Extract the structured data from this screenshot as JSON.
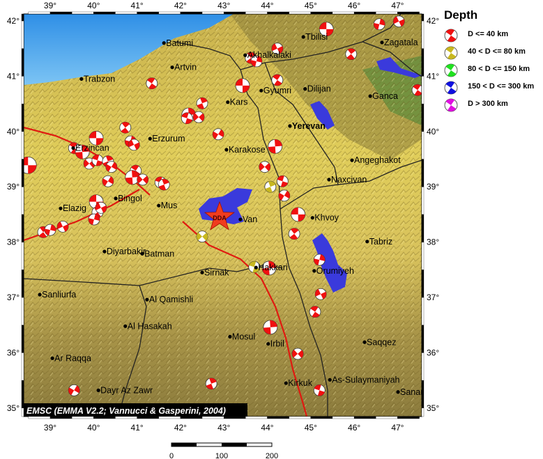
{
  "map": {
    "credit": "EMSC (EMMA V2.2; Vannucci & Gasperini, 2004)",
    "lon_ticks": [
      "39°",
      "40°",
      "41°",
      "42°",
      "43°",
      "44°",
      "45°",
      "46°",
      "47°"
    ],
    "lat_ticks": [
      "42°",
      "41°",
      "40°",
      "39°",
      "38°",
      "37°",
      "36°",
      "35°"
    ],
    "lon_range": [
      38.4,
      47.5
    ],
    "lat_range": [
      34.9,
      42.1
    ],
    "event_marker": {
      "label": "DDA",
      "lon": 42.9,
      "lat": 38.45,
      "color": "#f03c1e"
    },
    "colors": {
      "sea": "#3f9be8",
      "lake": "#3a3adc",
      "land": "#d9c457",
      "fault": "#e01a10",
      "border": "#222222"
    },
    "cities": [
      {
        "name": "Trabzon",
        "lon": 39.72,
        "lat": 40.95
      },
      {
        "name": "Batumi",
        "lon": 41.62,
        "lat": 41.6
      },
      {
        "name": "Artvin",
        "lon": 41.81,
        "lat": 41.16
      },
      {
        "name": "Tbilisi",
        "lon": 44.83,
        "lat": 41.71
      },
      {
        "name": "Akhalkalaki",
        "lon": 43.49,
        "lat": 41.38
      },
      {
        "name": "Zagatala",
        "lon": 46.64,
        "lat": 41.61
      },
      {
        "name": "Gyumri",
        "lon": 43.86,
        "lat": 40.74
      },
      {
        "name": "Dilijan",
        "lon": 44.87,
        "lat": 40.77
      },
      {
        "name": "Ganca",
        "lon": 46.37,
        "lat": 40.64
      },
      {
        "name": "Kars",
        "lon": 43.09,
        "lat": 40.53
      },
      {
        "name": "Yerevan",
        "lon": 44.52,
        "lat": 40.1,
        "bold": true
      },
      {
        "name": "Erzurum",
        "lon": 41.3,
        "lat": 39.87
      },
      {
        "name": "Erzincan",
        "lon": 39.53,
        "lat": 39.7
      },
      {
        "name": "Karakose",
        "lon": 43.06,
        "lat": 39.67
      },
      {
        "name": "Angeghakot",
        "lon": 45.95,
        "lat": 39.48
      },
      {
        "name": "Naxcivan",
        "lon": 45.42,
        "lat": 39.13
      },
      {
        "name": "Bingol",
        "lon": 40.51,
        "lat": 38.79
      },
      {
        "name": "Mus",
        "lon": 41.5,
        "lat": 38.66
      },
      {
        "name": "Elazig",
        "lon": 39.24,
        "lat": 38.61
      },
      {
        "name": "Van",
        "lon": 43.38,
        "lat": 38.41
      },
      {
        "name": "Khvoy",
        "lon": 45.04,
        "lat": 38.44
      },
      {
        "name": "Tabriz",
        "lon": 46.3,
        "lat": 38.01
      },
      {
        "name": "Diyarbakir",
        "lon": 40.25,
        "lat": 37.83
      },
      {
        "name": "Batman",
        "lon": 41.12,
        "lat": 37.79
      },
      {
        "name": "Sirnak",
        "lon": 42.5,
        "lat": 37.45
      },
      {
        "name": "Hakkari",
        "lon": 43.74,
        "lat": 37.54
      },
      {
        "name": "Orumiyeh",
        "lon": 45.08,
        "lat": 37.48
      },
      {
        "name": "Sanliurfa",
        "lon": 38.76,
        "lat": 37.05
      },
      {
        "name": "Al Qamishli",
        "lon": 41.23,
        "lat": 36.96
      },
      {
        "name": "Al Hasakah",
        "lon": 40.73,
        "lat": 36.48
      },
      {
        "name": "Mosul",
        "lon": 43.14,
        "lat": 36.29
      },
      {
        "name": "Irbil",
        "lon": 44.02,
        "lat": 36.16
      },
      {
        "name": "Saqqez",
        "lon": 46.24,
        "lat": 36.19
      },
      {
        "name": "Ar Raqqa",
        "lon": 39.05,
        "lat": 35.9
      },
      {
        "name": "Dayr Az Zawr",
        "lon": 40.11,
        "lat": 35.32
      },
      {
        "name": "Kirkuk",
        "lon": 44.43,
        "lat": 35.45
      },
      {
        "name": "As-Sulaymaniyah",
        "lon": 45.44,
        "lat": 35.51
      },
      {
        "name": "Sanandaj",
        "lon": 47.01,
        "lat": 35.29
      }
    ],
    "events": [
      [
        38.49,
        39.39,
        "a"
      ],
      [
        38.84,
        38.18,
        "a"
      ],
      [
        39.0,
        38.22,
        "a"
      ],
      [
        39.29,
        38.28,
        "a"
      ],
      [
        39.55,
        39.7,
        "a"
      ],
      [
        39.74,
        39.63,
        "a"
      ],
      [
        39.9,
        39.42,
        "a"
      ],
      [
        40.09,
        39.48,
        "a"
      ],
      [
        40.33,
        39.46,
        "a"
      ],
      [
        40.41,
        39.36,
        "a"
      ],
      [
        40.06,
        39.88,
        "a"
      ],
      [
        40.73,
        40.07,
        "a"
      ],
      [
        40.85,
        39.82,
        "a"
      ],
      [
        40.93,
        39.76,
        "a"
      ],
      [
        40.97,
        39.29,
        "a"
      ],
      [
        40.89,
        39.17,
        "a"
      ],
      [
        41.13,
        39.13,
        "a"
      ],
      [
        41.54,
        39.08,
        "a"
      ],
      [
        41.62,
        39.04,
        "a"
      ],
      [
        40.33,
        39.1,
        "a"
      ],
      [
        40.06,
        38.73,
        "a"
      ],
      [
        40.09,
        38.54,
        "a"
      ],
      [
        40.01,
        38.41,
        "a"
      ],
      [
        40.17,
        38.62,
        "a"
      ],
      [
        41.34,
        40.87,
        "a"
      ],
      [
        42.19,
        40.3,
        "a"
      ],
      [
        42.42,
        40.26,
        "a"
      ],
      [
        42.15,
        40.24,
        "a"
      ],
      [
        42.5,
        40.51,
        "a"
      ],
      [
        42.87,
        39.95,
        "a"
      ],
      [
        43.43,
        40.83,
        "a"
      ],
      [
        43.62,
        41.33,
        "a"
      ],
      [
        43.75,
        41.27,
        "a"
      ],
      [
        44.23,
        41.5,
        "a"
      ],
      [
        44.23,
        40.93,
        "a"
      ],
      [
        44.18,
        39.73,
        "a"
      ],
      [
        43.94,
        39.36,
        "a"
      ],
      [
        44.35,
        39.1,
        "a"
      ],
      [
        44.07,
        39.0,
        "b"
      ],
      [
        44.39,
        38.84,
        "a"
      ],
      [
        44.71,
        38.5,
        "a"
      ],
      [
        44.62,
        38.15,
        "a"
      ],
      [
        45.2,
        37.68,
        "a"
      ],
      [
        45.23,
        37.06,
        "a"
      ],
      [
        45.1,
        36.74,
        "a"
      ],
      [
        44.07,
        36.46,
        "a"
      ],
      [
        44.7,
        35.98,
        "a"
      ],
      [
        45.2,
        35.32,
        "a"
      ],
      [
        42.71,
        35.44,
        "a"
      ],
      [
        39.55,
        35.32,
        "a"
      ],
      [
        45.36,
        41.85,
        "a"
      ],
      [
        45.93,
        41.4,
        "a"
      ],
      [
        46.58,
        41.94,
        "a"
      ],
      [
        47.03,
        41.99,
        "a"
      ],
      [
        47.46,
        40.75,
        "a"
      ],
      [
        44.04,
        37.53,
        "a"
      ],
      [
        42.5,
        38.1,
        "b"
      ],
      [
        43.7,
        37.55,
        "b"
      ]
    ]
  },
  "legend": {
    "title": "Depth",
    "items": [
      {
        "label": "D <= 40 km",
        "color": "#f01010"
      },
      {
        "label": "40 < D <= 80 km",
        "color": "#c8b820"
      },
      {
        "label": "80 < D <= 150 km",
        "color": "#20e020"
      },
      {
        "label": "150 < D <= 300 km",
        "color": "#1010e0"
      },
      {
        "label": "D > 300 km",
        "color": "#e010e0"
      }
    ]
  },
  "scale_bar": {
    "labels": [
      "0",
      "100",
      "200"
    ]
  }
}
